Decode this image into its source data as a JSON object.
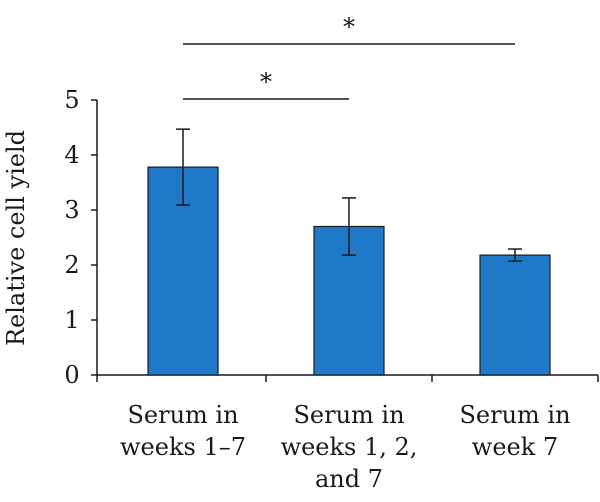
{
  "chart_data": {
    "type": "bar",
    "ylabel": "Relative cell yield",
    "ylim": [
      0,
      5
    ],
    "yticks": [
      "0",
      "1",
      "2",
      "3",
      "4",
      "5"
    ],
    "categories": [
      [
        "Serum in",
        "weeks 1–7"
      ],
      [
        "Serum in",
        "weeks 1, 2,",
        "and 7"
      ],
      [
        "Serum in",
        "week 7"
      ]
    ],
    "values": [
      3.78,
      2.7,
      2.18
    ],
    "errors": [
      0.69,
      0.52,
      0.11
    ],
    "bar_color": "#1f78c8",
    "grid": false,
    "legend": "none",
    "significance": [
      {
        "from": 0,
        "to": 1,
        "label": "*"
      },
      {
        "from": 0,
        "to": 2,
        "label": "*"
      }
    ]
  }
}
